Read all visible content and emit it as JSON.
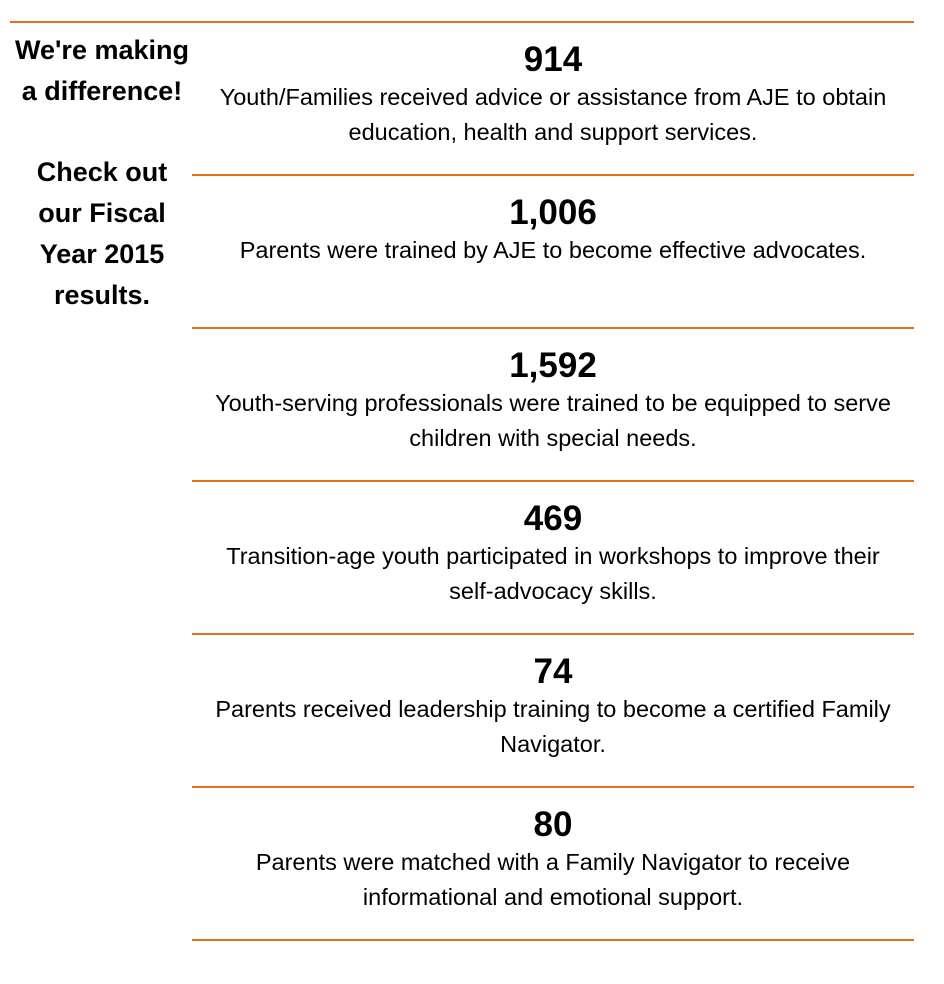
{
  "sidebar": {
    "headline": "We're making a difference!",
    "cta": "Check out our Fiscal Year 2015 results."
  },
  "accent_color": "#e07020",
  "stats": [
    {
      "value": "914",
      "description": "Youth/Families received advice or assistance from AJE to obtain education, health and support services."
    },
    {
      "value": "1,006",
      "description": "Parents were trained by AJE to become effective advocates."
    },
    {
      "value": "1,592",
      "description": "Youth-serving professionals were trained to be equipped to serve children with special needs."
    },
    {
      "value": "469",
      "description": "Transition-age youth participated in workshops to improve their self-advocacy skills."
    },
    {
      "value": "74",
      "description": "Parents received leadership training to become a certified Family Navigator."
    },
    {
      "value": "80",
      "description": "Parents were matched with a Family Navigator to receive informational and emotional support."
    }
  ]
}
